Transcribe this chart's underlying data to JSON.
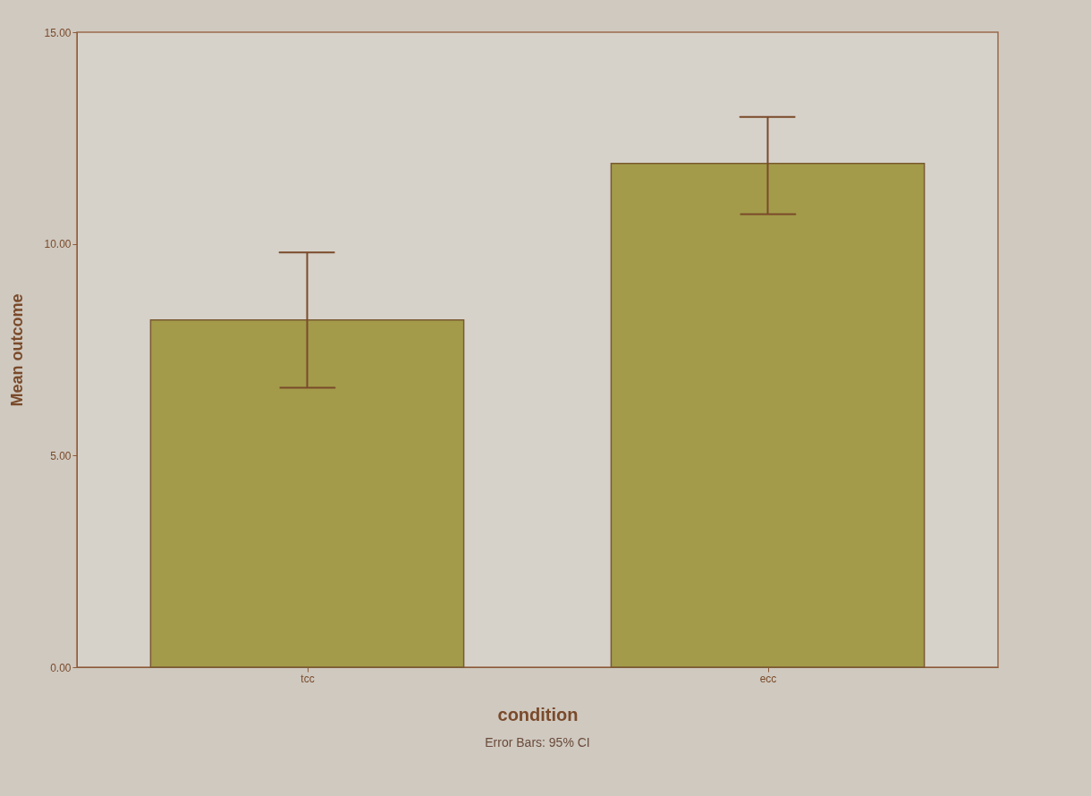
{
  "chart_data": {
    "type": "bar",
    "xlabel": "condition",
    "ylabel": "Mean outcome",
    "categories": [
      "tcc",
      "ecc"
    ],
    "values": [
      8.2,
      11.9
    ],
    "errors": [
      [
        6.6,
        9.8
      ],
      [
        10.7,
        13.0
      ]
    ],
    "color": "#a39b4a",
    "ylim": [
      0,
      15
    ],
    "yticks": [
      {
        "value": 0,
        "label": "0.00"
      },
      {
        "value": 5,
        "label": "5.00"
      },
      {
        "value": 10,
        "label": "10.00"
      },
      {
        "value": 15,
        "label": "15.00"
      }
    ],
    "annotations": [
      "Error Bars: 95% CI"
    ]
  }
}
